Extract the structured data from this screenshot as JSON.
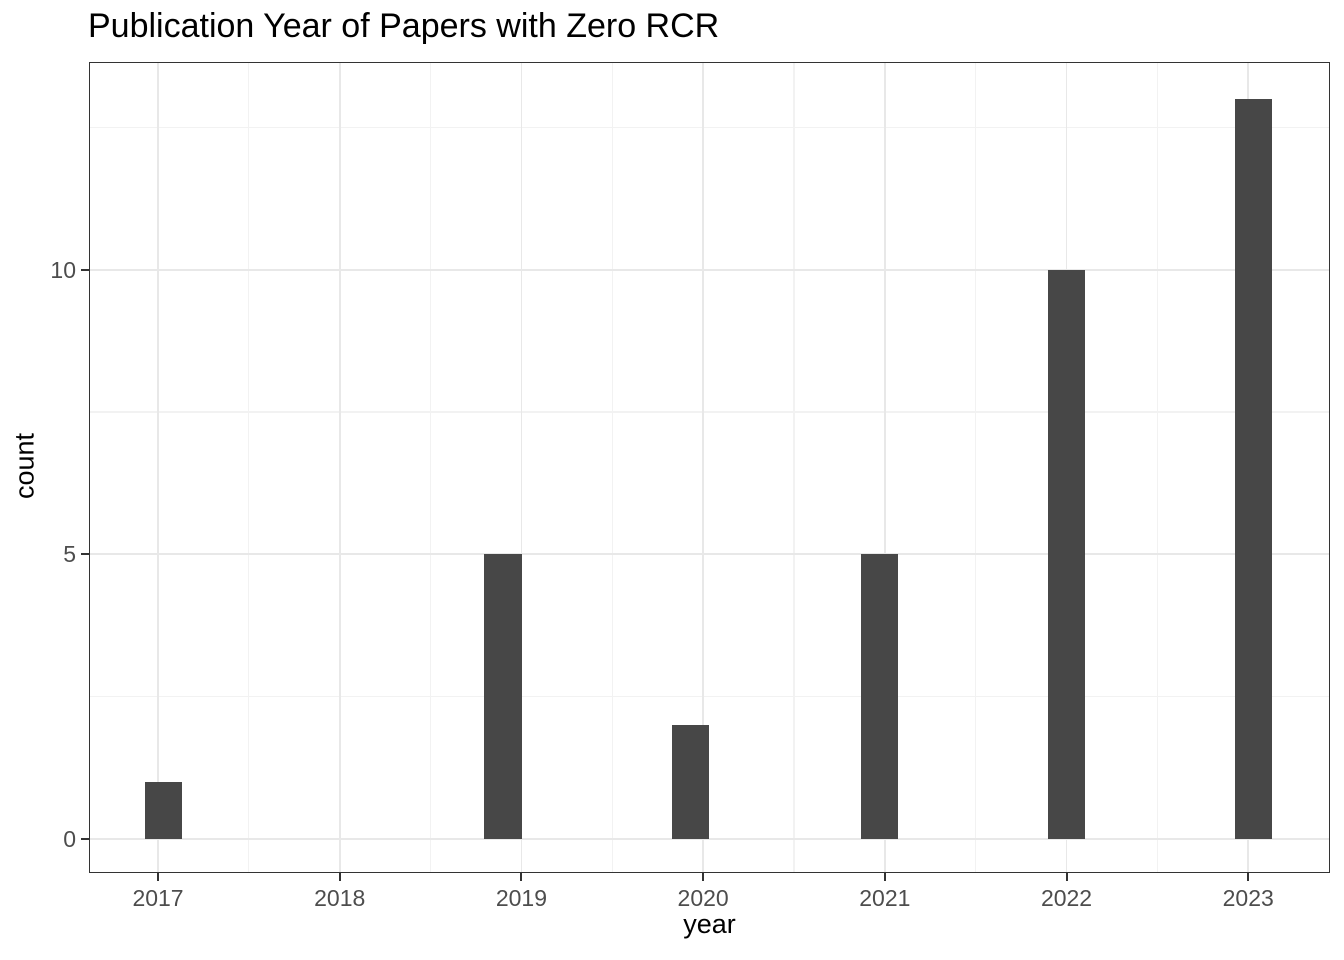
{
  "chart_data": {
    "type": "bar",
    "title": "Publication Year of Papers with Zero RCR",
    "xlabel": "year",
    "ylabel": "count",
    "categories": [
      "2017",
      "2018",
      "2019",
      "2020",
      "2021",
      "2022",
      "2023"
    ],
    "values": [
      1,
      0,
      5,
      2,
      5,
      10,
      13
    ],
    "bars": [
      {
        "x": 2017.03,
        "count": 1
      },
      {
        "x": 2018.9,
        "count": 5
      },
      {
        "x": 2019.93,
        "count": 2
      },
      {
        "x": 2020.97,
        "count": 5
      },
      {
        "x": 2022.0,
        "count": 10
      },
      {
        "x": 2023.03,
        "count": 13
      }
    ],
    "bar_width_years": 0.207,
    "x_ticks": [
      2017,
      2018,
      2019,
      2020,
      2021,
      2022,
      2023
    ],
    "x_minor_ticks": [
      2017.5,
      2018.5,
      2019.5,
      2020.5,
      2021.5,
      2022.5
    ],
    "y_ticks": [
      0,
      5,
      10
    ],
    "y_minor_ticks": [
      2.5,
      7.5,
      12.5
    ],
    "x_domain": [
      2016.62,
      2023.45
    ],
    "y_domain": [
      -0.6,
      13.65
    ],
    "grid": "major-and-minor",
    "legend_position": "none",
    "colors": {
      "bar_fill": "#474747",
      "grid_major": "#e8e8e8",
      "grid_minor": "#f2f2f2",
      "panel_border": "#333333",
      "tick_mark": "#333333",
      "tick_label": "#4d4d4d",
      "title_text": "#000000",
      "axis_title_text": "#000000",
      "background": "#ffffff"
    }
  }
}
